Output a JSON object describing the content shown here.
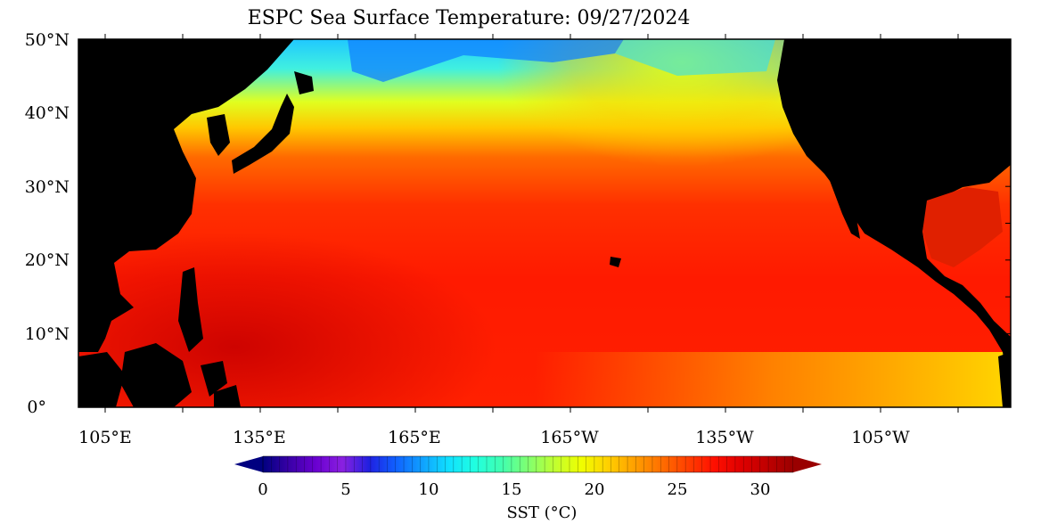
{
  "title": "ESPC Sea Surface Temperature: 09/27/2024",
  "y_axis": {
    "tick_labels": [
      "50°N",
      "40°N",
      "30°N",
      "20°N",
      "10°N",
      "0°"
    ]
  },
  "x_axis": {
    "tick_labels": [
      "105°E",
      "135°E",
      "165°E",
      "165°W",
      "135°W",
      "105°W"
    ]
  },
  "colorbar": {
    "label": "SST (°C)",
    "tick_labels": [
      "0",
      "5",
      "10",
      "15",
      "20",
      "25",
      "30"
    ],
    "range": [
      0,
      32
    ],
    "colors": [
      "#000080",
      "#3a00a8",
      "#6a00d0",
      "#8a20e0",
      "#2020e0",
      "#1060ff",
      "#10a0ff",
      "#10e0ff",
      "#20ffe0",
      "#40ffb0",
      "#80ff70",
      "#c0ff30",
      "#f0ff00",
      "#ffd000",
      "#ffa000",
      "#ff7000",
      "#ff4000",
      "#ff1000",
      "#e00000",
      "#c00000",
      "#9a0000"
    ]
  },
  "palette": {
    "land": "#000000",
    "warm_pool": "#d40000",
    "tropical": "#ff1500",
    "subtropical": "#ff5000",
    "mid": "#ffa000",
    "mid_lat": "#e8ff00",
    "cool": "#50ffb0",
    "cold": "#00a0ff",
    "equatorial_east": "#ffd000"
  }
}
